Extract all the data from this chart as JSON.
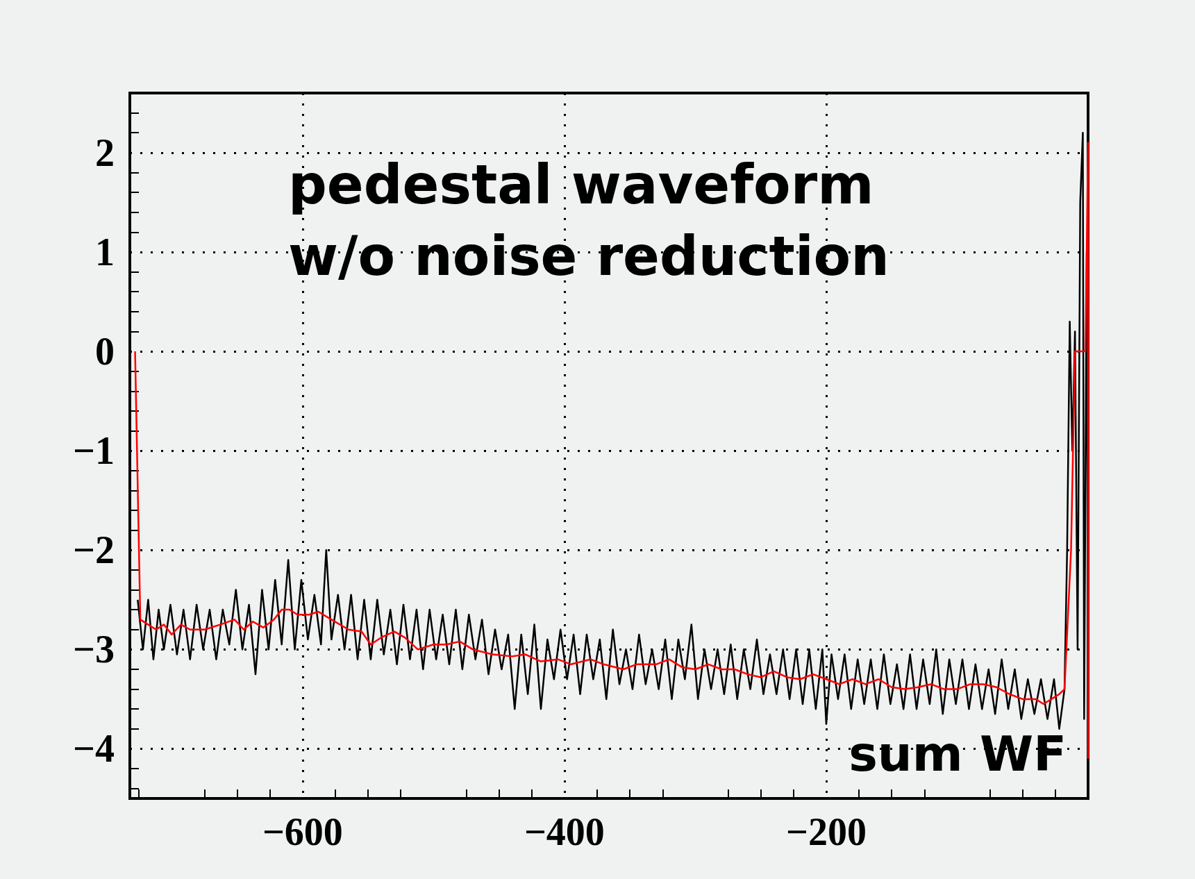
{
  "chart_data": {
    "type": "line",
    "annotations": [
      "pedestal waveform\nw/o noise reduction",
      "sum WF"
    ],
    "xlim": [
      -732,
      0
    ],
    "ylim": [
      -4.5,
      2.6
    ],
    "xticks": [
      -600,
      -400,
      -200
    ],
    "yticks": [
      -4,
      -3,
      -2,
      -1,
      0,
      1,
      2
    ],
    "grid": true,
    "marker": "none",
    "line_style": "solid",
    "series": [
      {
        "color": "#000000",
        "x": [
          -726,
          -722,
          -718,
          -714,
          -710,
          -706,
          -701,
          -696,
          -691,
          -686,
          -681,
          -676,
          -671,
          -666,
          -661,
          -656,
          -651,
          -646,
          -641,
          -636,
          -631,
          -626,
          -621,
          -616,
          -611,
          -606,
          -601,
          -596,
          -591,
          -586,
          -582,
          -578,
          -573,
          -568,
          -563,
          -558,
          -553,
          -548,
          -543,
          -538,
          -533,
          -528,
          -523,
          -518,
          -513,
          -508,
          -503,
          -498,
          -493,
          -488,
          -483,
          -478,
          -473,
          -468,
          -463,
          -458,
          -453,
          -448,
          -443,
          -438,
          -433,
          -428,
          -423,
          -418,
          -413,
          -408,
          -403,
          -398,
          -393,
          -388,
          -383,
          -378,
          -373,
          -368,
          -363,
          -358,
          -353,
          -348,
          -343,
          -338,
          -333,
          -328,
          -323,
          -318,
          -313,
          -308,
          -303,
          -298,
          -293,
          -288,
          -283,
          -278,
          -273,
          -268,
          -263,
          -258,
          -253,
          -248,
          -243,
          -238,
          -233,
          -228,
          -223,
          -218,
          -213,
          -208,
          -203,
          -200,
          -196,
          -191,
          -186,
          -181,
          -176,
          -171,
          -166,
          -161,
          -156,
          -151,
          -146,
          -141,
          -136,
          -131,
          -126,
          -121,
          -116,
          -111,
          -106,
          -101,
          -96,
          -91,
          -86,
          -81,
          -76,
          -71,
          -66,
          -61,
          -56,
          -51,
          -46,
          -41,
          -36,
          -31,
          -26,
          -22,
          -18,
          -16,
          -14,
          -12,
          -10,
          -8,
          -6,
          -4,
          -3,
          -1,
          0
        ],
        "values": [
          -2.5,
          -3.0,
          -2.5,
          -3.1,
          -2.6,
          -3.0,
          -2.55,
          -3.05,
          -2.6,
          -3.1,
          -2.55,
          -3.0,
          -2.6,
          -3.1,
          -2.6,
          -2.95,
          -2.4,
          -3.0,
          -2.55,
          -3.25,
          -2.4,
          -3.0,
          -2.3,
          -2.95,
          -2.1,
          -3.0,
          -2.3,
          -2.9,
          -2.45,
          -2.95,
          -2.0,
          -2.9,
          -2.45,
          -3.0,
          -2.45,
          -3.1,
          -2.5,
          -3.1,
          -2.5,
          -3.05,
          -2.6,
          -3.15,
          -2.55,
          -3.1,
          -2.6,
          -3.2,
          -2.6,
          -3.1,
          -2.65,
          -3.15,
          -2.6,
          -3.2,
          -2.65,
          -3.1,
          -2.7,
          -3.25,
          -2.8,
          -3.2,
          -2.85,
          -3.6,
          -2.85,
          -3.45,
          -2.75,
          -3.6,
          -2.9,
          -3.3,
          -2.8,
          -3.3,
          -2.85,
          -3.45,
          -2.85,
          -3.3,
          -2.9,
          -3.5,
          -2.8,
          -3.35,
          -3.0,
          -3.4,
          -2.85,
          -3.35,
          -3.0,
          -3.4,
          -2.9,
          -3.5,
          -2.9,
          -3.3,
          -2.75,
          -3.5,
          -3.0,
          -3.4,
          -3.0,
          -3.45,
          -2.95,
          -3.5,
          -3.0,
          -3.4,
          -2.9,
          -3.45,
          -3.05,
          -3.45,
          -3.0,
          -3.5,
          -3.0,
          -3.55,
          -3.0,
          -3.6,
          -3.0,
          -3.75,
          -3.05,
          -3.5,
          -3.05,
          -3.6,
          -3.1,
          -3.55,
          -3.1,
          -3.6,
          -3.05,
          -3.55,
          -3.15,
          -3.6,
          -3.05,
          -3.6,
          -3.1,
          -3.55,
          -3.0,
          -3.65,
          -3.1,
          -3.55,
          -3.1,
          -3.6,
          -3.15,
          -3.6,
          -3.2,
          -3.65,
          -3.1,
          -3.6,
          -3.2,
          -3.7,
          -3.3,
          -3.65,
          -3.3,
          -3.7,
          -3.3,
          -3.8,
          -3.4,
          -2.0,
          0.3,
          -1.0,
          0.2,
          -3.0,
          1.5,
          2.2,
          -3.7,
          1.0,
          -3.0
        ]
      },
      {
        "color": "#ff0000",
        "x": [
          -728,
          -724,
          -718,
          -712,
          -706,
          -700,
          -693,
          -686,
          -675,
          -663,
          -652,
          -645,
          -638,
          -630,
          -622,
          -616,
          -610,
          -604,
          -595,
          -588,
          -578,
          -565,
          -555,
          -548,
          -540,
          -530,
          -522,
          -512,
          -500,
          -490,
          -480,
          -470,
          -455,
          -440,
          -430,
          -418,
          -405,
          -395,
          -380,
          -370,
          -355,
          -345,
          -330,
          -320,
          -310,
          -300,
          -290,
          -280,
          -270,
          -260,
          -250,
          -240,
          -230,
          -220,
          -210,
          -200,
          -190,
          -180,
          -170,
          -160,
          -150,
          -140,
          -130,
          -120,
          -110,
          -100,
          -90,
          -80,
          -70,
          -60,
          -50,
          -40,
          -34,
          -28,
          -22,
          -18,
          -13,
          -10,
          -2,
          0,
          0
        ],
        "values": [
          0,
          -2.7,
          -2.75,
          -2.8,
          -2.75,
          -2.85,
          -2.75,
          -2.8,
          -2.8,
          -2.75,
          -2.7,
          -2.8,
          -2.72,
          -2.78,
          -2.7,
          -2.6,
          -2.6,
          -2.65,
          -2.65,
          -2.62,
          -2.7,
          -2.8,
          -2.82,
          -2.95,
          -2.88,
          -2.82,
          -2.88,
          -3.0,
          -2.95,
          -2.95,
          -2.92,
          -3.0,
          -3.05,
          -3.07,
          -3.05,
          -3.12,
          -3.1,
          -3.15,
          -3.1,
          -3.15,
          -3.2,
          -3.15,
          -3.15,
          -3.1,
          -3.18,
          -3.2,
          -3.15,
          -3.2,
          -3.2,
          -3.25,
          -3.28,
          -3.22,
          -3.28,
          -3.3,
          -3.25,
          -3.3,
          -3.35,
          -3.3,
          -3.35,
          -3.3,
          -3.38,
          -3.4,
          -3.38,
          -3.35,
          -3.4,
          -3.4,
          -3.35,
          -3.35,
          -3.38,
          -3.45,
          -3.5,
          -3.5,
          -3.55,
          -3.5,
          -3.45,
          -3.4,
          -2.0,
          0,
          0,
          2.1,
          -4.1
        ]
      }
    ]
  }
}
